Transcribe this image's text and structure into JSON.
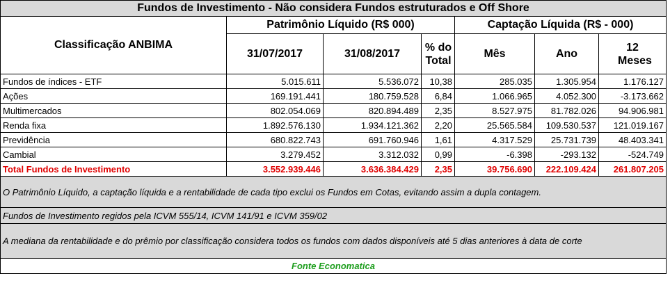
{
  "title": "Fundos de Investimento - Não considera Fundos estruturados e Off Shore",
  "header": {
    "classification": "Classificação ANBIMA",
    "group1": "Patrimônio Líquido (R$ 000)",
    "group2": "Captação Líquida (R$ - 000)",
    "columns": [
      "31/07/2017",
      "31/08/2017",
      "% do Total",
      "Mês",
      "Ano",
      "12 Meses"
    ]
  },
  "rows": [
    [
      "Fundos de índices - ETF",
      "5.015.611",
      "5.536.072",
      "10,38",
      "285.035",
      "1.305.954",
      "1.176.127"
    ],
    [
      "Ações",
      "169.191.441",
      "180.759.528",
      "6,84",
      "1.066.965",
      "4.052.300",
      "-3.173.662"
    ],
    [
      "Multimercados",
      "802.054.069",
      "820.894.489",
      "2,35",
      "8.527.975",
      "81.782.026",
      "94.906.981"
    ],
    [
      "Renda fixa",
      "1.892.576.130",
      "1.934.121.362",
      "2,20",
      "25.565.584",
      "109.530.537",
      "121.019.167"
    ],
    [
      "Previdência",
      "680.822.743",
      "691.760.946",
      "1,61",
      "4.317.529",
      "25.731.739",
      "48.403.341"
    ],
    [
      "Cambial",
      "3.279.452",
      "3.312.032",
      "0,99",
      "-6.398",
      "-293.132",
      "-524.749"
    ]
  ],
  "total": [
    "Total Fundos de Investimento",
    "3.552.939.446",
    "3.636.384.429",
    "2,35",
    "39.756.690",
    "222.109.424",
    "261.807.205"
  ],
  "notes": [
    "O Patrimônio Líquido, a captação líquida e a rentabilidade de cada tipo exclui os Fundos em Cotas, evitando assim a dupla contagem.",
    "Fundos de Investimento regidos pela ICVM 555/14, ICVM 141/91 e ICVM 359/02",
    "A mediana da rentabilidade  e do prêmio por classificação considera todos os fundos com dados disponíveis até 5 dias anteriores à data de corte"
  ],
  "source": "Fonte Economatica"
}
